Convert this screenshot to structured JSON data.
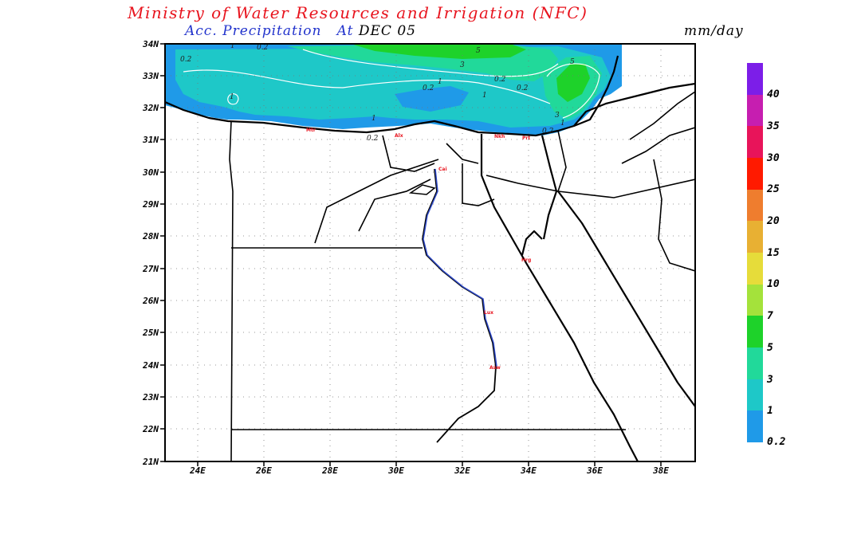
{
  "header": {
    "title": "Ministry of Water Resources and Irrigation (NFC)",
    "subtitle_product": "Acc. Precipitation",
    "subtitle_at": "At",
    "subtitle_date": "DEC 05",
    "units": "mm/day"
  },
  "map": {
    "lat_labels": [
      "34N",
      "33N",
      "32N",
      "31N",
      "30N",
      "29N",
      "28N",
      "27N",
      "26N",
      "25N",
      "24N",
      "23N",
      "22N",
      "21N"
    ],
    "lon_labels": [
      "24E",
      "26E",
      "28E",
      "30E",
      "32E",
      "34E",
      "36E",
      "38E"
    ],
    "contour_labels": [
      "0.2",
      "0.2",
      "0.2",
      "0.2",
      "0.2",
      "0.2",
      "0.2",
      "1",
      "1",
      "1",
      "1",
      "1",
      "3",
      "3",
      "5",
      "5",
      "1"
    ],
    "city_markers": [
      "Mtr",
      "Alx",
      "Prt",
      "Cai",
      "Hrg",
      "Lux",
      "Asw",
      "Nkh"
    ]
  },
  "legend": {
    "colors": [
      "#1f9ae8",
      "#1ec8c8",
      "#21d99a",
      "#1ed22a",
      "#a4e23b",
      "#e6dc3a",
      "#e8b033",
      "#ef7d2e",
      "#ff1a00",
      "#e8145a",
      "#c61eb0",
      "#7c1ee8"
    ],
    "labels": [
      "0.2",
      "1",
      "3",
      "5",
      "7",
      "10",
      "15",
      "20",
      "25",
      "30",
      "35",
      "40"
    ]
  }
}
